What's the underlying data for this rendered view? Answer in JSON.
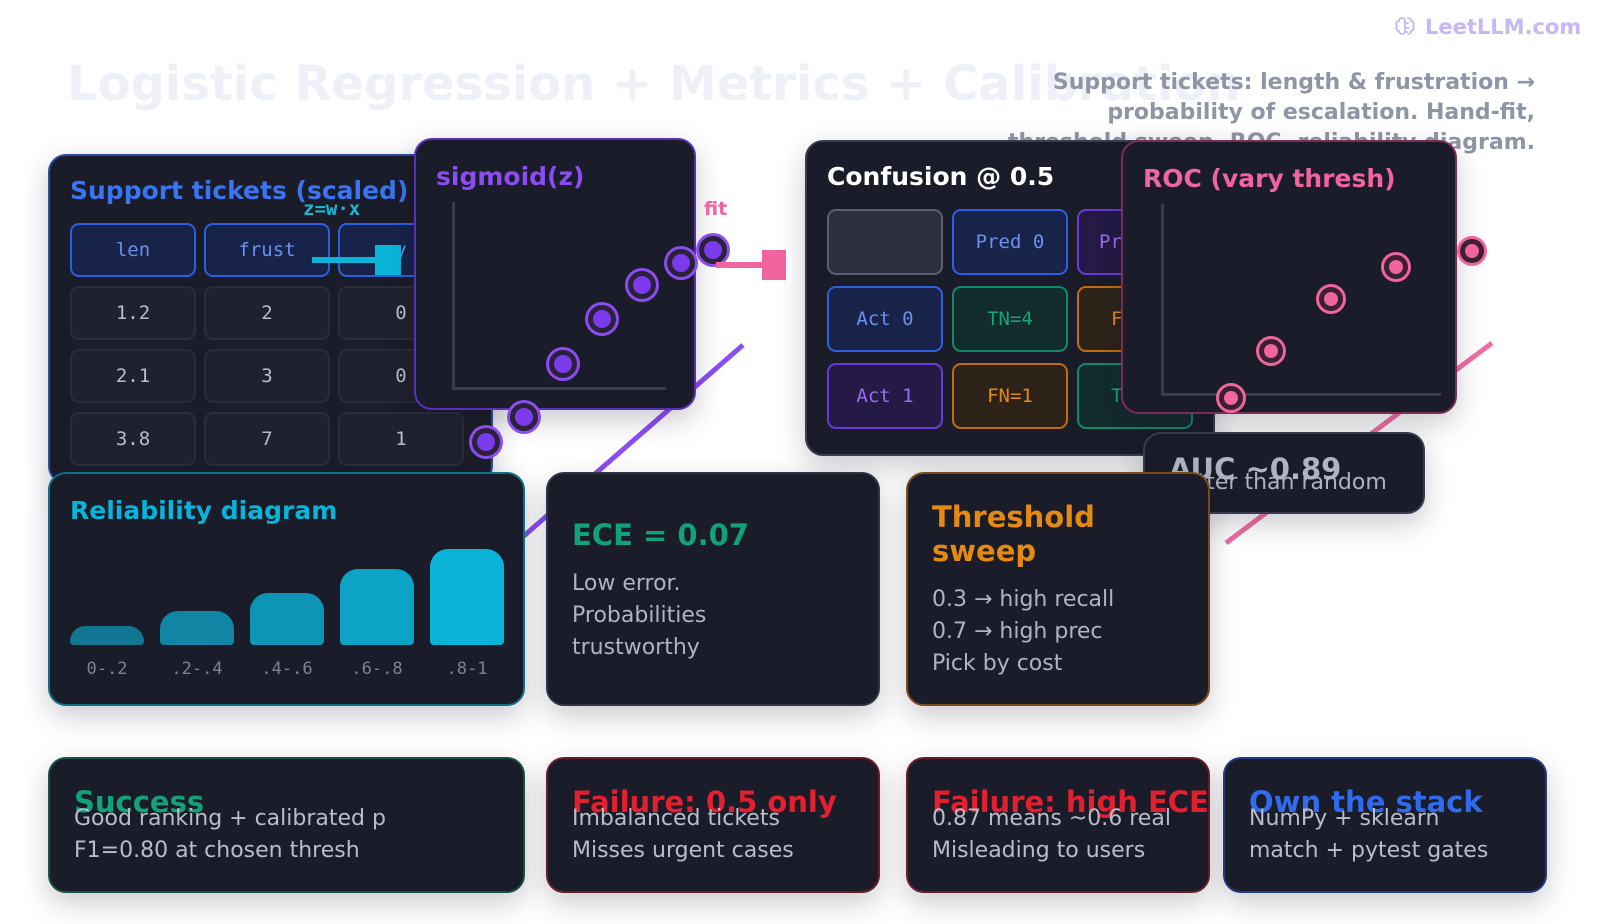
{
  "brand": {
    "name": "LeetLLM.com",
    "icon": "brain-icon"
  },
  "page_title": "Logistic Regression + Metrics + Calibration",
  "subtitle": "Support tickets: length & frustration → probability of escalation. Hand-fit, threshold sweep, ROC, reliability diagram.",
  "tickets": {
    "title": "Support tickets (scaled)",
    "headers": [
      "len",
      "frust",
      "y"
    ],
    "rows": [
      [
        "1.2",
        "2",
        "0"
      ],
      [
        "2.1",
        "3",
        "0"
      ],
      [
        "3.8",
        "7",
        "1"
      ]
    ]
  },
  "labels": {
    "z": "z=w·x",
    "fit": "fit"
  },
  "sigmoid": {
    "title": "sigmoid(z)"
  },
  "confusion": {
    "title": "Confusion @ 0.5",
    "col_headers": [
      "Pred 0",
      "Pred 1"
    ],
    "row_headers": [
      "Act 0",
      "Act 1"
    ],
    "cells": [
      [
        "TN=4",
        "FP=1"
      ],
      [
        "FN=1",
        "TP=4"
      ]
    ]
  },
  "roc": {
    "title": "ROC (vary thresh)"
  },
  "auc": {
    "value": "AUC ~0.89",
    "note": "Better than random"
  },
  "reliability": {
    "title": "Reliability diagram",
    "bins": [
      "0-.2",
      ".2-.4",
      ".4-.6",
      ".6-.8",
      ".8-1"
    ],
    "heights": [
      0.15,
      0.3,
      0.5,
      0.75,
      1.0
    ]
  },
  "ece": {
    "title": "ECE = 0.07",
    "lines": [
      "Low error.",
      "Probabilities",
      "trustworthy"
    ]
  },
  "threshold": {
    "title_1": "Threshold",
    "title_2": "sweep",
    "lines": [
      "0.3 → high recall",
      "0.7 → high prec",
      "Pick by cost"
    ]
  },
  "bottom": [
    {
      "title": "Success",
      "lines": [
        "Good ranking + calibrated p",
        "F1=0.80 at chosen thresh"
      ]
    },
    {
      "title": "Failure: 0.5 only",
      "lines": [
        "Imbalanced tickets",
        "Misses urgent cases"
      ]
    },
    {
      "title": "Failure: high ECE",
      "lines": [
        "0.87 means ~0.6 real",
        "Misleading to users"
      ]
    },
    {
      "title": "Own the stack",
      "lines": [
        "NumPy + sklearn",
        "match + pytest gates"
      ]
    }
  ],
  "colors": {
    "blue": "#2f6bec",
    "purple": "#7c3aed",
    "pink": "#f0649f",
    "cyan": "#0ab4d9",
    "green": "#16a34a",
    "orange": "#e58a10",
    "red": "#e2202f",
    "card": "#1b1c29"
  }
}
